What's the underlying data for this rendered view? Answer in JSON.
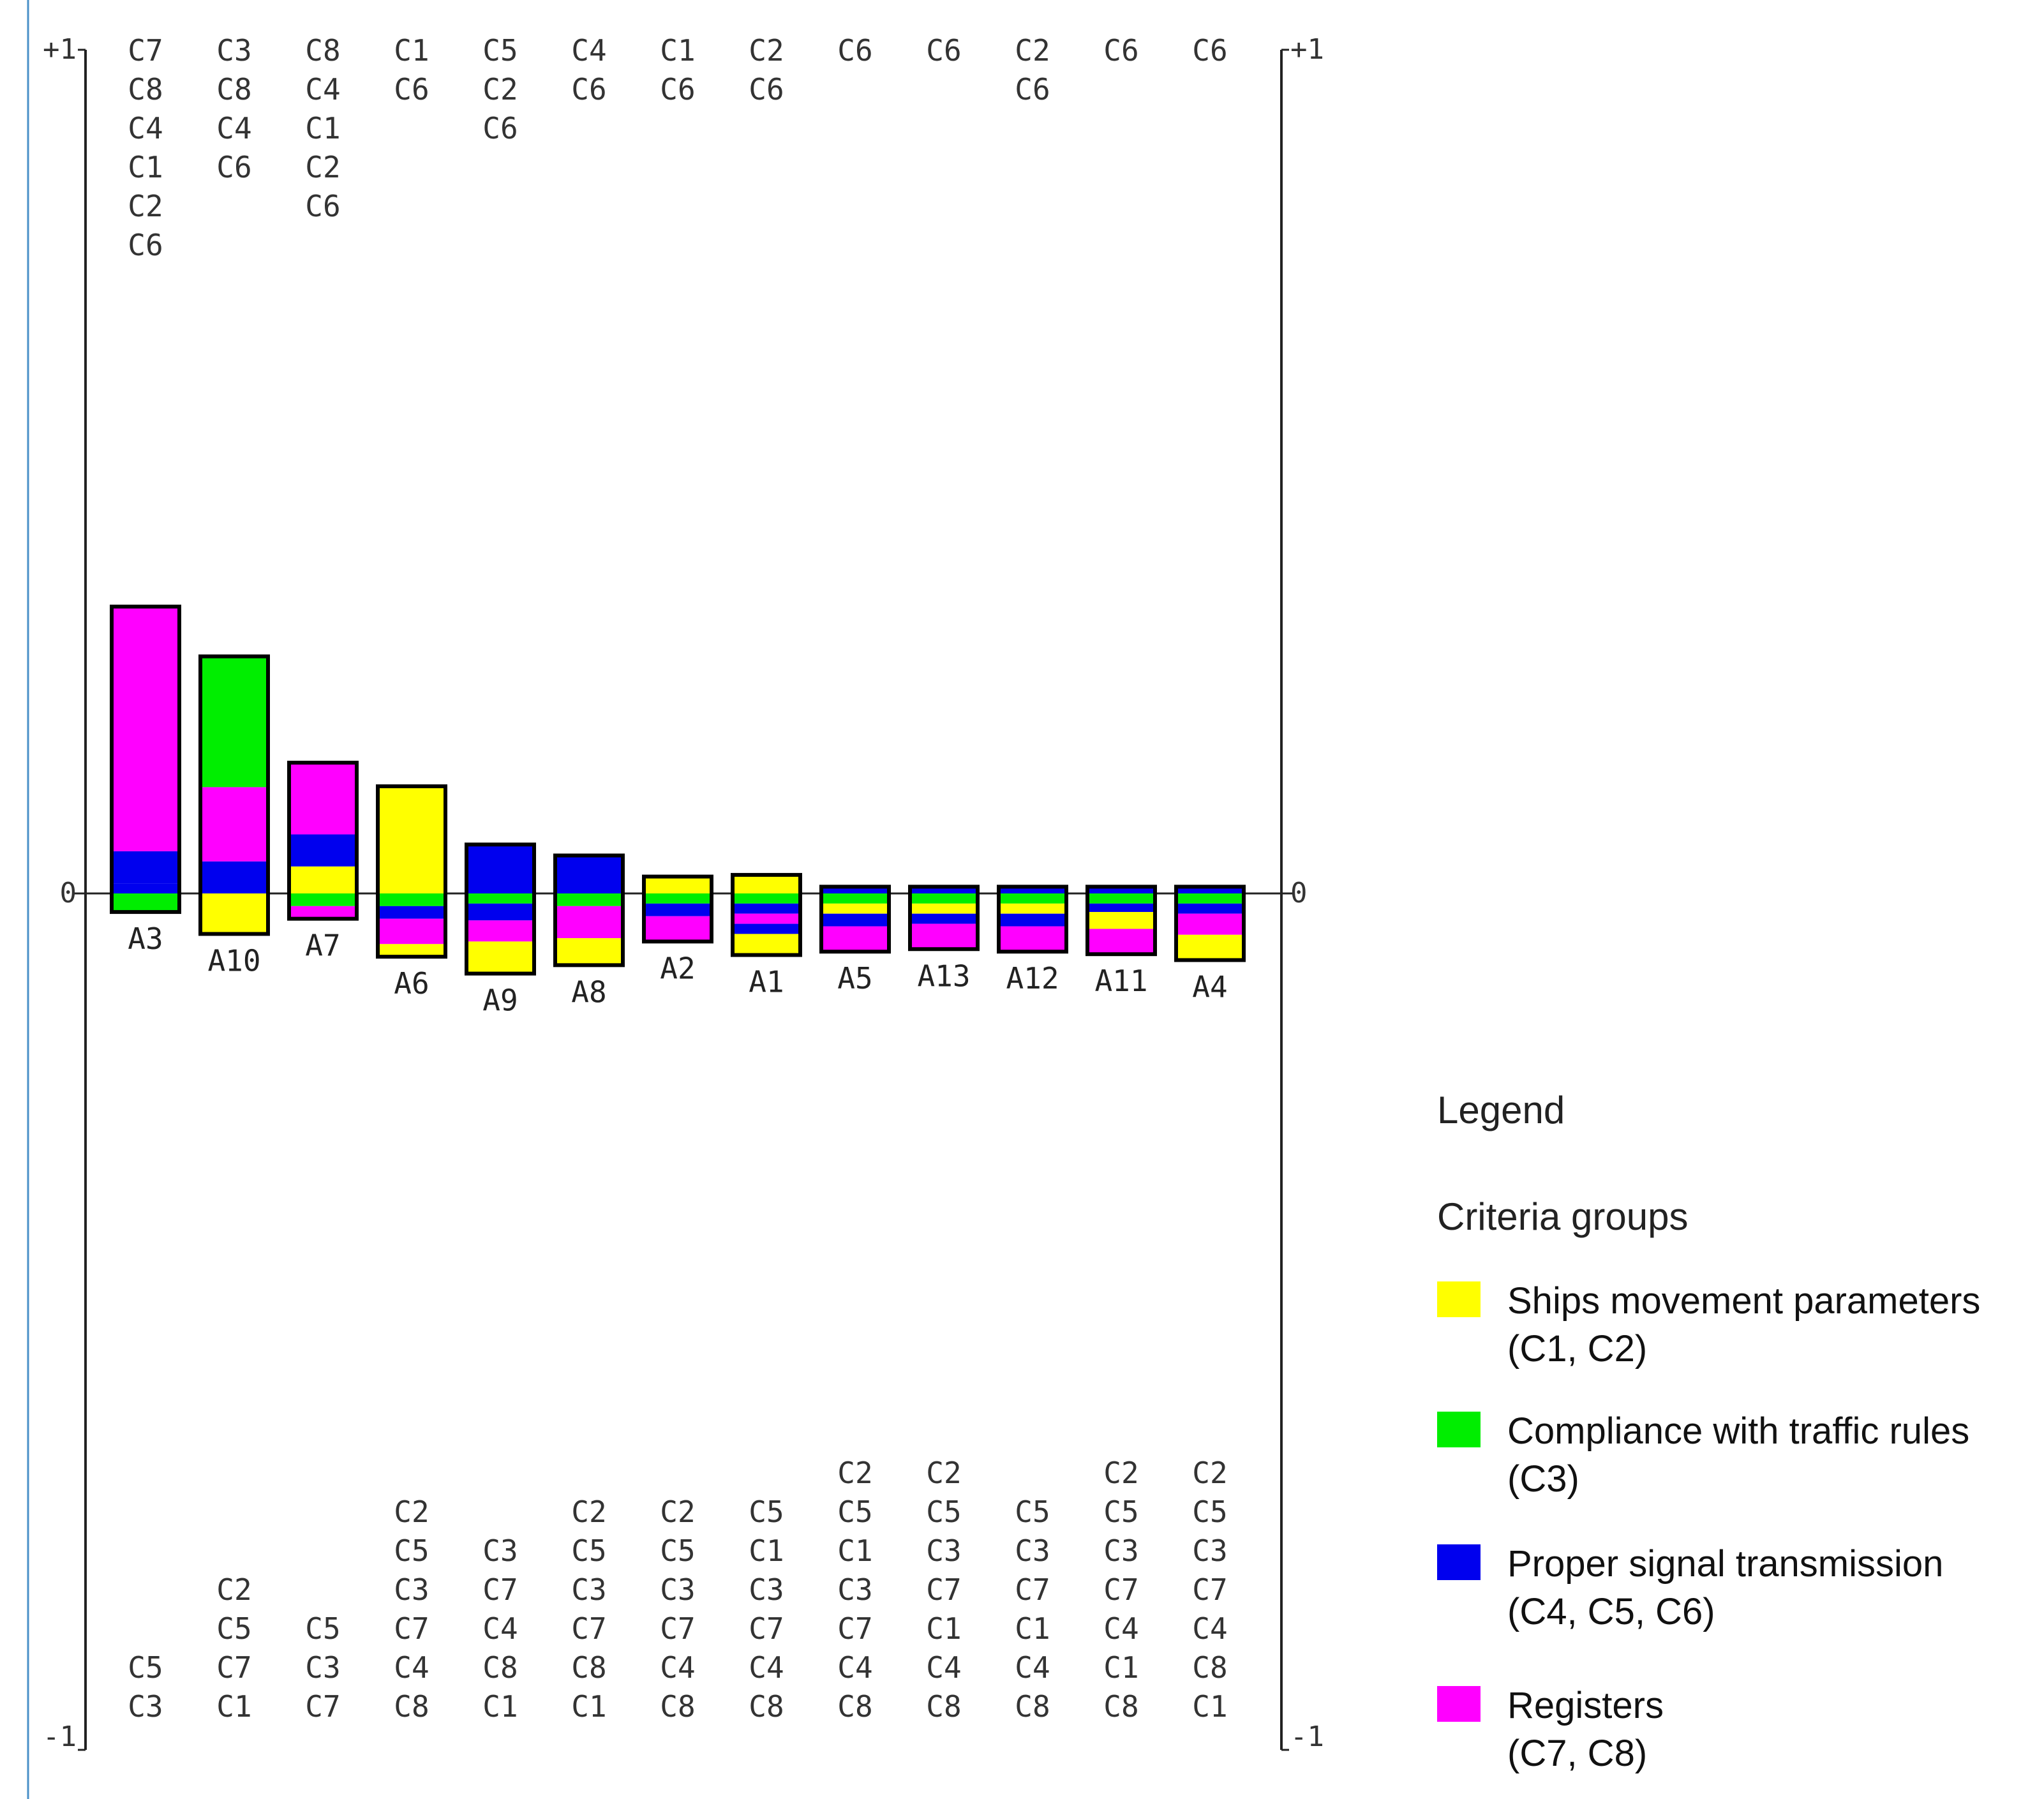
{
  "chart_data": {
    "type": "bar",
    "subtype": "stacked-diverging (PROMETHEE profile)",
    "axis": {
      "ylim": [
        -1,
        1
      ],
      "left_ticks": [
        {
          "value": 1,
          "label": "+1"
        },
        {
          "value": 0,
          "label": "0"
        },
        {
          "value": -1,
          "label": "-1"
        }
      ],
      "right_ticks": [
        {
          "value": 1,
          "label": "+1"
        },
        {
          "value": 0,
          "label": "0"
        },
        {
          "value": -1,
          "label": "-1"
        }
      ]
    },
    "groups": [
      {
        "key": "movement",
        "name": "Ships movement parameters",
        "criteria": "(C1, C2)",
        "color": "#ffff00"
      },
      {
        "key": "rules",
        "name": "Compliance with traffic rules",
        "criteria": "(C3)",
        "color": "#00ee00"
      },
      {
        "key": "signal",
        "name": "Proper signal transmission",
        "criteria": "(C4, C5, C6)",
        "color": "#0000ee"
      },
      {
        "key": "registers",
        "name": "Registers",
        "criteria": "(C7, C8)",
        "color": "#ff00ff"
      }
    ],
    "legend": {
      "title": "Legend",
      "subtitle": "Criteria groups"
    },
    "alternatives": [
      {
        "label": "A3",
        "pos": [
          [
            "signal",
            0.012
          ],
          [
            "signal",
            0.038
          ],
          [
            "registers",
            0.29
          ]
        ],
        "neg": [
          [
            "rules",
            0.022
          ]
        ],
        "pos_criteria": [
          "C7",
          "C8",
          "C4",
          "C1",
          "C2",
          "C6"
        ],
        "neg_criteria": [
          "C5",
          "C3"
        ]
      },
      {
        "label": "A10",
        "pos": [
          [
            "signal",
            0.038
          ],
          [
            "registers",
            0.088
          ],
          [
            "rules",
            0.155
          ]
        ],
        "neg": [
          [
            "movement",
            0.048
          ]
        ],
        "pos_criteria": [
          "C3",
          "C8",
          "C4",
          "C6"
        ],
        "neg_criteria": [
          "C2",
          "C5",
          "C7",
          "C1"
        ]
      },
      {
        "label": "A7",
        "pos": [
          [
            "movement",
            0.032
          ],
          [
            "signal",
            0.038
          ],
          [
            "registers",
            0.085
          ]
        ],
        "neg": [
          [
            "rules",
            0.015
          ],
          [
            "registers",
            0.015
          ]
        ],
        "pos_criteria": [
          "C8",
          "C4",
          "C1",
          "C2",
          "C6"
        ],
        "neg_criteria": [
          "C5",
          "C3",
          "C7"
        ]
      },
      {
        "label": "A6",
        "pos": [
          [
            "movement",
            0.127
          ]
        ],
        "neg": [
          [
            "rules",
            0.015
          ],
          [
            "signal",
            0.015
          ],
          [
            "registers",
            0.03
          ],
          [
            "movement",
            0.015
          ]
        ],
        "pos_criteria": [
          "C1",
          "C6"
        ],
        "neg_criteria": [
          "C2",
          "C5",
          "C3",
          "C7",
          "C4",
          "C8"
        ]
      },
      {
        "label": "A9",
        "pos": [
          [
            "signal",
            0.058
          ]
        ],
        "neg": [
          [
            "rules",
            0.012
          ],
          [
            "signal",
            0.02
          ],
          [
            "registers",
            0.025
          ],
          [
            "movement",
            0.038
          ]
        ],
        "pos_criteria": [
          "C5",
          "C2",
          "C6"
        ],
        "neg_criteria": [
          "C3",
          "C7",
          "C4",
          "C8",
          "C1"
        ]
      },
      {
        "label": "A8",
        "pos": [
          [
            "signal",
            0.045
          ]
        ],
        "neg": [
          [
            "rules",
            0.015
          ],
          [
            "registers",
            0.038
          ],
          [
            "movement",
            0.032
          ]
        ],
        "pos_criteria": [
          "C4",
          "C6"
        ],
        "neg_criteria": [
          "C2",
          "C5",
          "C3",
          "C7",
          "C8",
          "C1"
        ]
      },
      {
        "label": "A2",
        "pos": [
          [
            "movement",
            0.02
          ]
        ],
        "neg": [
          [
            "rules",
            0.012
          ],
          [
            "signal",
            0.015
          ],
          [
            "registers",
            0.03
          ]
        ],
        "pos_criteria": [
          "C1",
          "C6"
        ],
        "neg_criteria": [
          "C2",
          "C5",
          "C3",
          "C7",
          "C4",
          "C8"
        ]
      },
      {
        "label": "A1",
        "pos": [
          [
            "movement",
            0.022
          ]
        ],
        "neg": [
          [
            "rules",
            0.012
          ],
          [
            "signal",
            0.012
          ],
          [
            "registers",
            0.012
          ],
          [
            "signal",
            0.012
          ],
          [
            "movement",
            0.025
          ]
        ],
        "pos_criteria": [
          "C2",
          "C6"
        ],
        "neg_criteria": [
          "C5",
          "C1",
          "C3",
          "C7",
          "C4",
          "C8"
        ]
      },
      {
        "label": "A5",
        "pos": [
          [
            "signal",
            0.008
          ]
        ],
        "neg": [
          [
            "rules",
            0.012
          ],
          [
            "movement",
            0.012
          ],
          [
            "signal",
            0.015
          ],
          [
            "registers",
            0.03
          ]
        ],
        "pos_criteria": [
          "C6"
        ],
        "neg_criteria": [
          "C2",
          "C5",
          "C1",
          "C3",
          "C7",
          "C4",
          "C8"
        ]
      },
      {
        "label": "A13",
        "pos": [
          [
            "signal",
            0.008
          ]
        ],
        "neg": [
          [
            "rules",
            0.012
          ],
          [
            "movement",
            0.012
          ],
          [
            "signal",
            0.012
          ],
          [
            "registers",
            0.03
          ]
        ],
        "pos_criteria": [
          "C6"
        ],
        "neg_criteria": [
          "C2",
          "C5",
          "C3",
          "C7",
          "C1",
          "C4",
          "C8"
        ]
      },
      {
        "label": "A12",
        "pos": [
          [
            "signal",
            0.008
          ]
        ],
        "neg": [
          [
            "rules",
            0.012
          ],
          [
            "movement",
            0.012
          ],
          [
            "signal",
            0.015
          ],
          [
            "registers",
            0.03
          ]
        ],
        "pos_criteria": [
          "C2",
          "C6"
        ],
        "neg_criteria": [
          "C5",
          "C3",
          "C7",
          "C1",
          "C4",
          "C8"
        ]
      },
      {
        "label": "A11",
        "pos": [
          [
            "signal",
            0.008
          ]
        ],
        "neg": [
          [
            "rules",
            0.012
          ],
          [
            "signal",
            0.01
          ],
          [
            "movement",
            0.02
          ],
          [
            "registers",
            0.03
          ]
        ],
        "pos_criteria": [
          "C6"
        ],
        "neg_criteria": [
          "C2",
          "C5",
          "C3",
          "C7",
          "C4",
          "C1",
          "C8"
        ]
      },
      {
        "label": "A4",
        "pos": [
          [
            "signal",
            0.008
          ]
        ],
        "neg": [
          [
            "rules",
            0.012
          ],
          [
            "signal",
            0.012
          ],
          [
            "registers",
            0.025
          ],
          [
            "movement",
            0.03
          ]
        ],
        "pos_criteria": [
          "C6"
        ],
        "neg_criteria": [
          "C2",
          "C5",
          "C3",
          "C7",
          "C4",
          "C8",
          "C1"
        ]
      }
    ]
  }
}
